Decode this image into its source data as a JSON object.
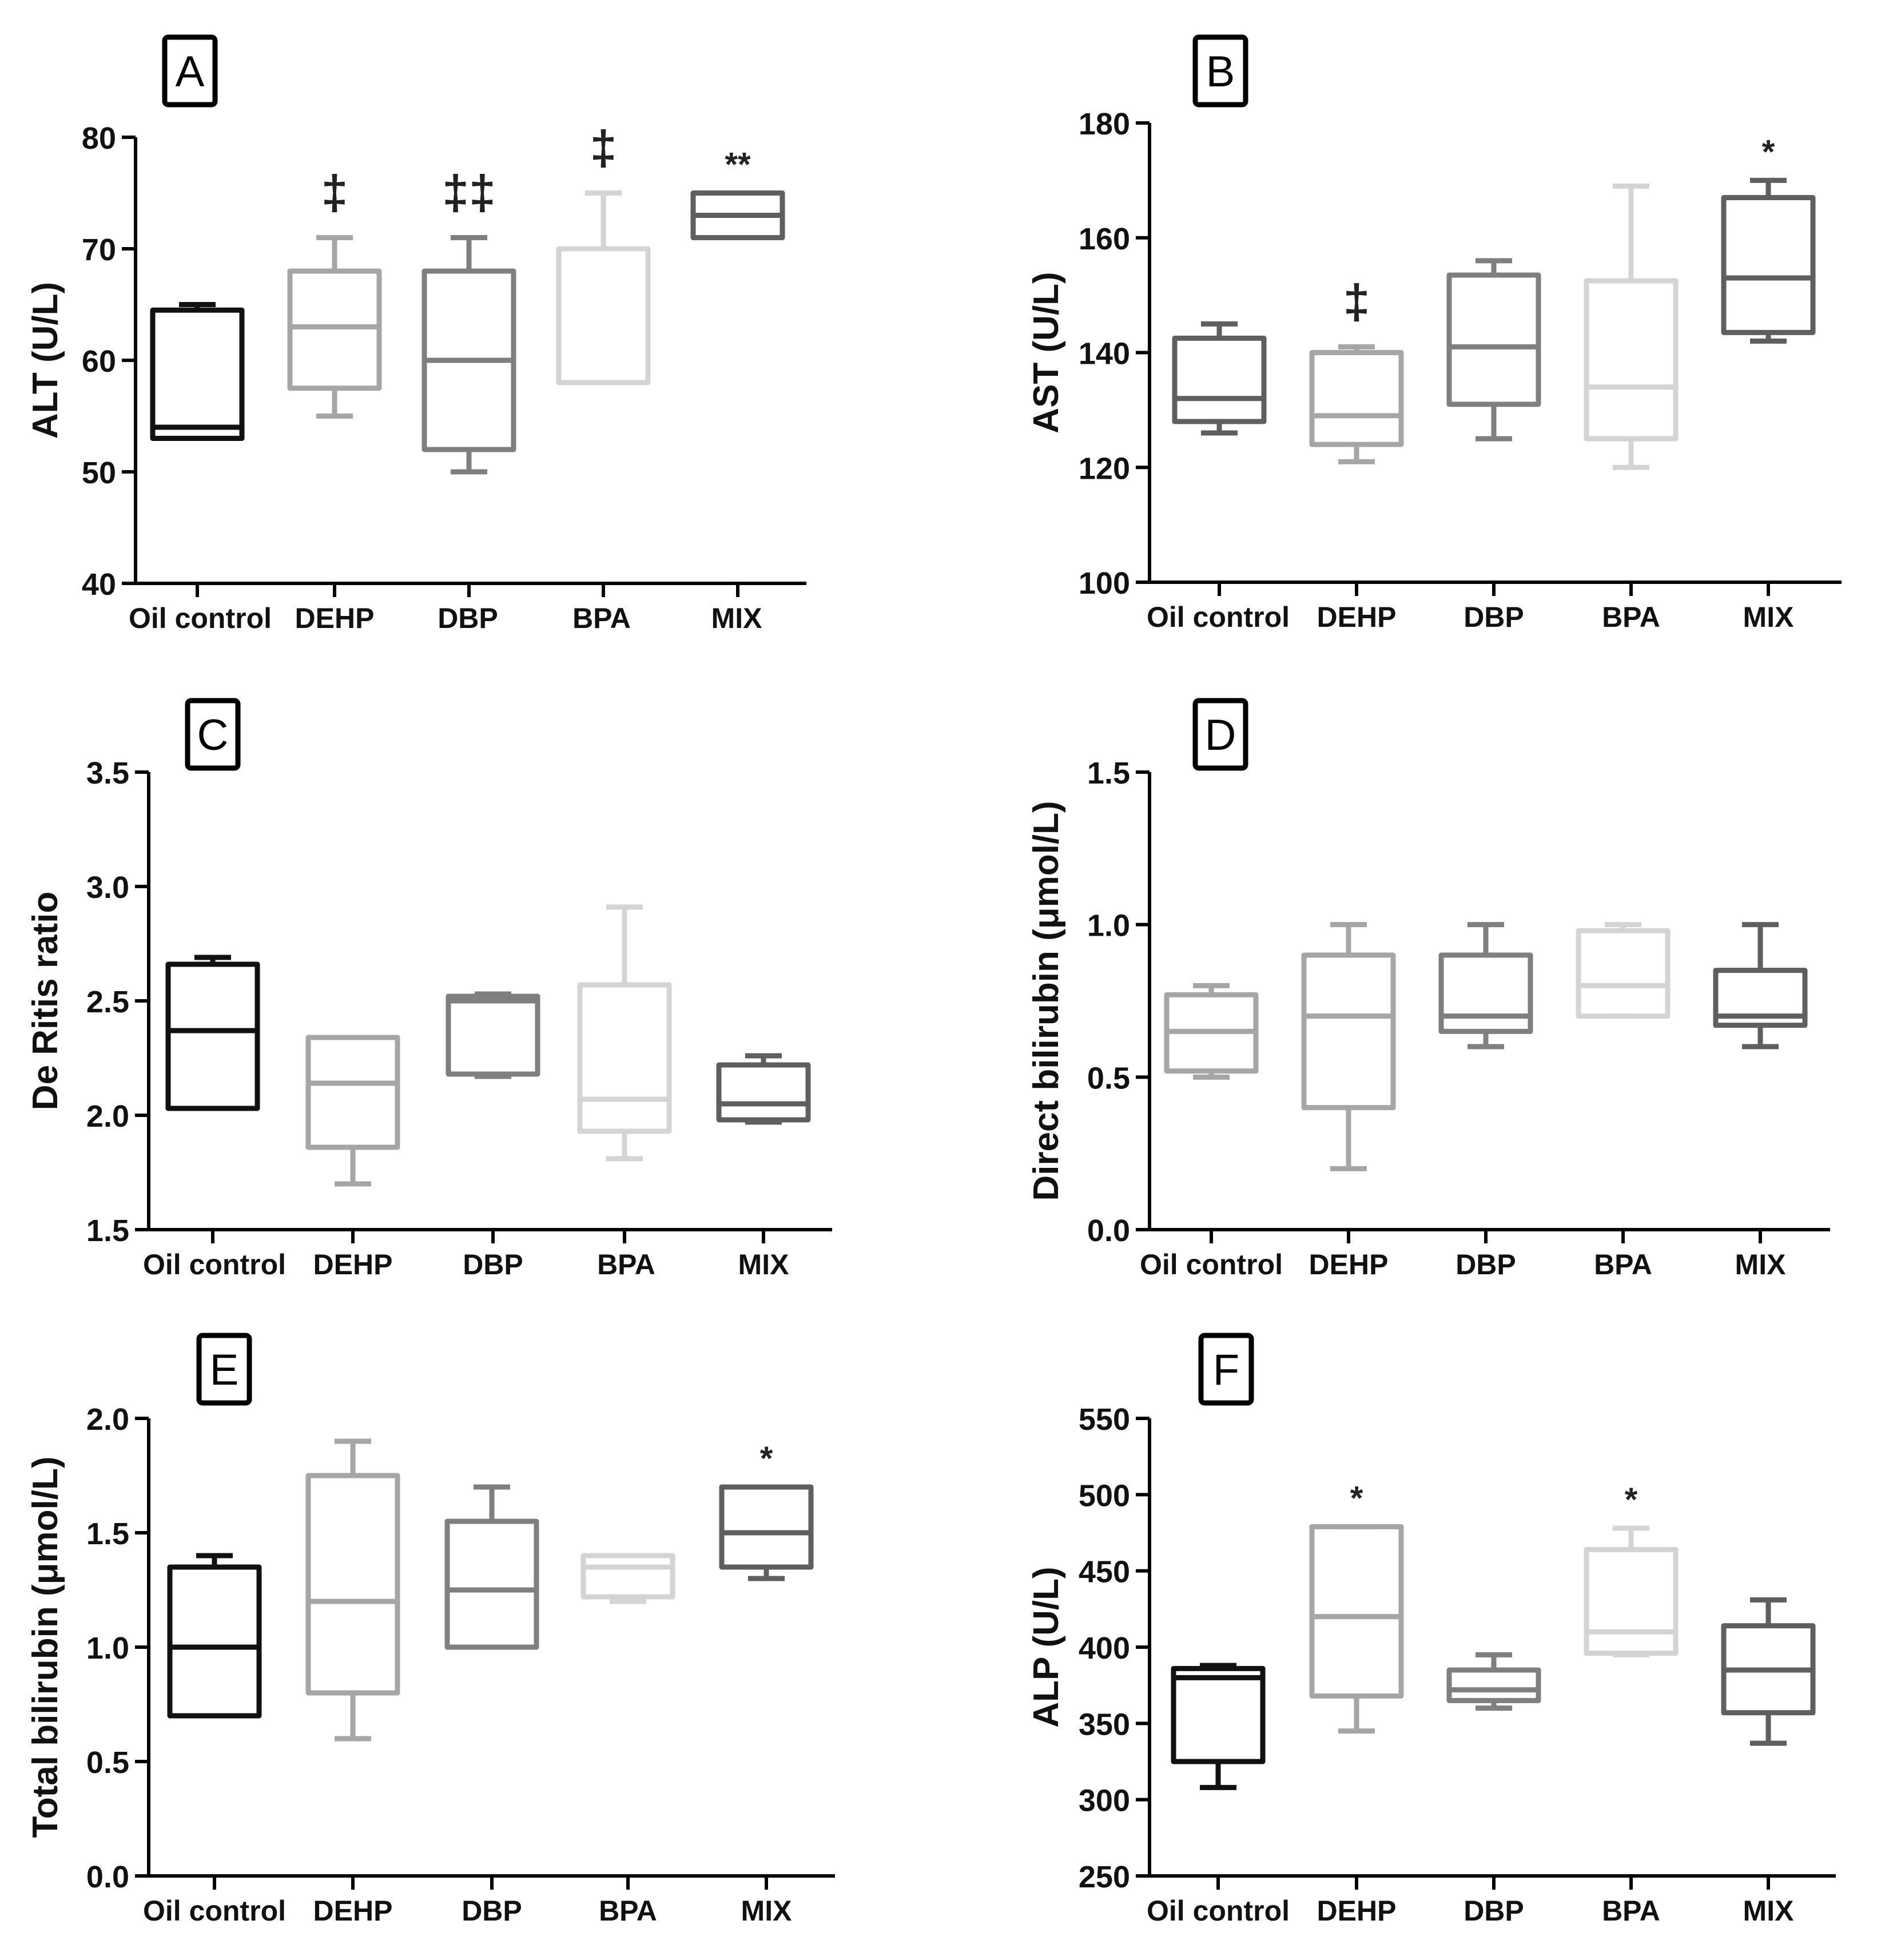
{
  "chart_data": [
    {
      "panel": "A",
      "type": "box",
      "ylabel": "ALT (U/L)",
      "ylim": [
        40,
        80
      ],
      "yticks": [
        40,
        50,
        60,
        70,
        80
      ],
      "yticklabels": [
        "40",
        "50",
        "60",
        "70",
        "80"
      ],
      "categories": [
        "Oil control",
        "DEHP",
        "DBP",
        "BPA",
        "MIX"
      ],
      "boxes": [
        {
          "min": 53,
          "q1": 53,
          "median": 54,
          "q3": 64.5,
          "max": 65,
          "annotation": "",
          "color": "#111111"
        },
        {
          "min": 55,
          "q1": 57.5,
          "median": 63,
          "q3": 68,
          "max": 71,
          "annotation": "‡",
          "color": "#a6a6a6"
        },
        {
          "min": 50,
          "q1": 52,
          "median": 60,
          "q3": 68,
          "max": 71,
          "annotation": "‡‡",
          "color": "#7f7f7f"
        },
        {
          "min": 58,
          "q1": 58,
          "median": 70,
          "q3": 70,
          "max": 75,
          "annotation": "‡",
          "color": "#d4d4d4"
        },
        {
          "min": 71,
          "q1": 71,
          "median": 73,
          "q3": 75,
          "max": 75,
          "annotation": "**",
          "color": "#5f5f5f"
        }
      ]
    },
    {
      "panel": "B",
      "type": "box",
      "ylabel": "AST (U/L)",
      "ylim": [
        100,
        180
      ],
      "yticks": [
        100,
        120,
        140,
        160,
        180
      ],
      "yticklabels": [
        "100",
        "120",
        "140",
        "160",
        "180"
      ],
      "categories": [
        "Oil control",
        "DEHP",
        "DBP",
        "BPA",
        "MIX"
      ],
      "boxes": [
        {
          "min": 126,
          "q1": 128,
          "median": 132,
          "q3": 142.5,
          "max": 145,
          "annotation": "",
          "color": "#5f5f5f"
        },
        {
          "min": 121,
          "q1": 124,
          "median": 129,
          "q3": 140,
          "max": 141,
          "annotation": "‡",
          "color": "#a6a6a6"
        },
        {
          "min": 125,
          "q1": 131,
          "median": 141,
          "q3": 153.5,
          "max": 156,
          "annotation": "",
          "color": "#7f7f7f"
        },
        {
          "min": 120,
          "q1": 125,
          "median": 134,
          "q3": 152.5,
          "max": 169,
          "annotation": "",
          "color": "#d4d4d4"
        },
        {
          "min": 142,
          "q1": 143.5,
          "median": 153,
          "q3": 167,
          "max": 170,
          "annotation": "*",
          "color": "#5f5f5f"
        }
      ]
    },
    {
      "panel": "C",
      "type": "box",
      "ylabel": "De Ritis ratio",
      "ylim": [
        1.5,
        3.5
      ],
      "yticks": [
        1.5,
        2.0,
        2.5,
        3.0,
        3.5
      ],
      "yticklabels": [
        "1.5",
        "2.0",
        "2.5",
        "3.0",
        "3.5"
      ],
      "categories": [
        "Oil control",
        "DEHP",
        "DBP",
        "BPA",
        "MIX"
      ],
      "boxes": [
        {
          "min": 2.03,
          "q1": 2.03,
          "median": 2.37,
          "q3": 2.66,
          "max": 2.69,
          "annotation": "",
          "color": "#111111"
        },
        {
          "min": 1.7,
          "q1": 1.86,
          "median": 2.14,
          "q3": 2.34,
          "max": 2.34,
          "annotation": "",
          "color": "#a6a6a6"
        },
        {
          "min": 2.17,
          "q1": 2.18,
          "median": 2.5,
          "q3": 2.52,
          "max": 2.53,
          "annotation": "",
          "color": "#7f7f7f"
        },
        {
          "min": 1.81,
          "q1": 1.93,
          "median": 2.07,
          "q3": 2.57,
          "max": 2.91,
          "annotation": "",
          "color": "#d4d4d4"
        },
        {
          "min": 1.97,
          "q1": 1.98,
          "median": 2.05,
          "q3": 2.22,
          "max": 2.26,
          "annotation": "",
          "color": "#5f5f5f"
        }
      ]
    },
    {
      "panel": "D",
      "type": "box",
      "ylabel": "Direct bilirubin (μmol/L)",
      "ylim": [
        0.0,
        1.5
      ],
      "yticks": [
        0.0,
        0.5,
        1.0,
        1.5
      ],
      "yticklabels": [
        "0.0",
        "0.5",
        "1.0",
        "1.5"
      ],
      "categories": [
        "Oil control",
        "DEHP",
        "DBP",
        "BPA",
        "MIX"
      ],
      "boxes": [
        {
          "min": 0.5,
          "q1": 0.52,
          "median": 0.65,
          "q3": 0.77,
          "max": 0.8,
          "annotation": "",
          "color": "#a6a6a6"
        },
        {
          "min": 0.2,
          "q1": 0.4,
          "median": 0.7,
          "q3": 0.9,
          "max": 1.0,
          "annotation": "",
          "color": "#a6a6a6"
        },
        {
          "min": 0.6,
          "q1": 0.65,
          "median": 0.7,
          "q3": 0.9,
          "max": 1.0,
          "annotation": "",
          "color": "#7f7f7f"
        },
        {
          "min": 0.7,
          "q1": 0.7,
          "median": 0.8,
          "q3": 0.98,
          "max": 1.0,
          "annotation": "",
          "color": "#d4d4d4"
        },
        {
          "min": 0.6,
          "q1": 0.67,
          "median": 0.7,
          "q3": 0.85,
          "max": 1.0,
          "annotation": "",
          "color": "#5f5f5f"
        }
      ]
    },
    {
      "panel": "E",
      "type": "box",
      "ylabel": "Total bilirubin (μmol/L)",
      "ylim": [
        0.0,
        2.0
      ],
      "yticks": [
        0.0,
        0.5,
        1.0,
        1.5,
        2.0
      ],
      "yticklabels": [
        "0.0",
        "0.5",
        "1.0",
        "1.5",
        "2.0"
      ],
      "categories": [
        "Oil control",
        "DEHP",
        "DBP",
        "BPA",
        "MIX"
      ],
      "boxes": [
        {
          "min": 0.7,
          "q1": 0.7,
          "median": 1.0,
          "q3": 1.35,
          "max": 1.4,
          "annotation": "",
          "color": "#111111"
        },
        {
          "min": 0.6,
          "q1": 0.8,
          "median": 1.2,
          "q3": 1.75,
          "max": 1.9,
          "annotation": "",
          "color": "#a6a6a6"
        },
        {
          "min": 1.0,
          "q1": 1.0,
          "median": 1.25,
          "q3": 1.55,
          "max": 1.7,
          "annotation": "",
          "color": "#7f7f7f"
        },
        {
          "min": 1.2,
          "q1": 1.22,
          "median": 1.35,
          "q3": 1.4,
          "max": 1.4,
          "annotation": "",
          "color": "#d4d4d4"
        },
        {
          "min": 1.3,
          "q1": 1.35,
          "median": 1.5,
          "q3": 1.7,
          "max": 1.7,
          "annotation": "*",
          "color": "#5f5f5f"
        }
      ]
    },
    {
      "panel": "F",
      "type": "box",
      "ylabel": "ALP (U/L)",
      "ylim": [
        250,
        550
      ],
      "yticks": [
        250,
        300,
        350,
        400,
        450,
        500,
        550
      ],
      "yticklabels": [
        "250",
        "300",
        "350",
        "400",
        "450",
        "500",
        "550"
      ],
      "categories": [
        "Oil control",
        "DEHP",
        "DBP",
        "BPA",
        "MIX"
      ],
      "boxes": [
        {
          "min": 308,
          "q1": 325,
          "median": 380,
          "q3": 386,
          "max": 388,
          "annotation": "",
          "color": "#111111"
        },
        {
          "min": 345,
          "q1": 368,
          "median": 420,
          "q3": 479,
          "max": 479,
          "annotation": "*",
          "color": "#a6a6a6"
        },
        {
          "min": 360,
          "q1": 365,
          "median": 372,
          "q3": 385,
          "max": 395,
          "annotation": "",
          "color": "#7f7f7f"
        },
        {
          "min": 395,
          "q1": 396,
          "median": 410,
          "q3": 464,
          "max": 478,
          "annotation": "*",
          "color": "#d4d4d4"
        },
        {
          "min": 337,
          "q1": 357,
          "median": 385,
          "q3": 414,
          "max": 431,
          "annotation": "",
          "color": "#5f5f5f"
        }
      ]
    }
  ]
}
